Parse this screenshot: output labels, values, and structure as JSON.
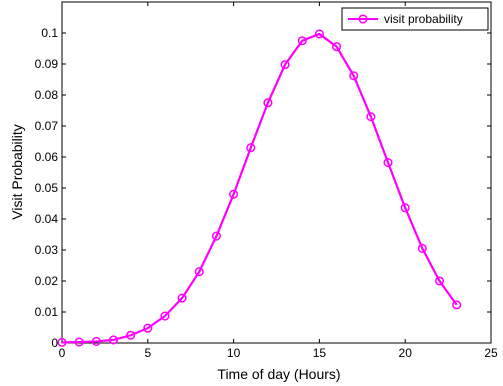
{
  "chart_data": {
    "type": "line",
    "title": "",
    "xlabel": "Time of day (Hours)",
    "ylabel": "Visit Probability",
    "xlim": [
      0,
      25
    ],
    "ylim": [
      0,
      0.11
    ],
    "xticks": [
      0,
      5,
      10,
      15,
      20,
      25
    ],
    "xtick_labels": [
      "0",
      "5",
      "10",
      "15",
      "20",
      "25"
    ],
    "yticks": [
      0,
      0.01,
      0.02,
      0.03,
      0.04,
      0.05,
      0.06,
      0.07,
      0.08,
      0.09,
      0.1
    ],
    "ytick_labels": [
      "0",
      "0.01",
      "0.02",
      "0.03",
      "0.04",
      "0.05",
      "0.06",
      "0.07",
      "0.08",
      "0.09",
      "0.1"
    ],
    "grid": false,
    "legend_position": "top-right",
    "series": [
      {
        "name": "visit probability",
        "color": "#ff00ff",
        "marker": "circle",
        "x": [
          0,
          1,
          2,
          3,
          4,
          5,
          6,
          7,
          8,
          9,
          10,
          11,
          12,
          13,
          14,
          15,
          16,
          17,
          18,
          19,
          20,
          21,
          22,
          23
        ],
        "y": [
          0.0002,
          0.0003,
          0.0005,
          0.001,
          0.0025,
          0.0048,
          0.0087,
          0.0145,
          0.023,
          0.0345,
          0.048,
          0.063,
          0.0775,
          0.0898,
          0.0975,
          0.0997,
          0.0956,
          0.0862,
          0.073,
          0.0582,
          0.0436,
          0.0305,
          0.02,
          0.0123
        ]
      }
    ]
  }
}
